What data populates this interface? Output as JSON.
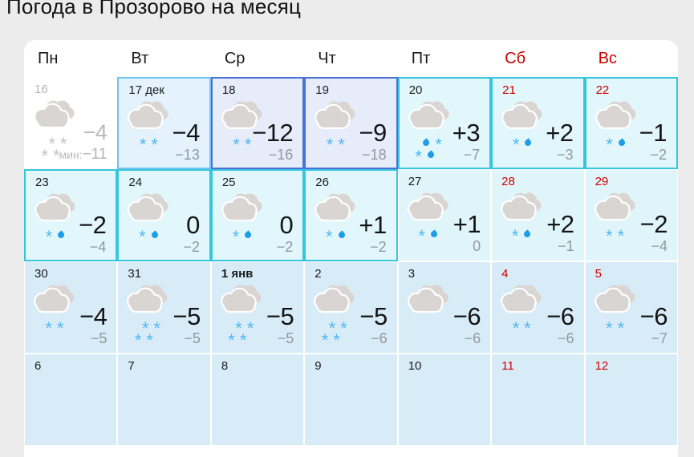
{
  "title": "Погода в Прозорово на месяц",
  "weekdays": [
    {
      "label": "Пн",
      "weekend": false
    },
    {
      "label": "Вт",
      "weekend": false
    },
    {
      "label": "Ср",
      "weekend": false
    },
    {
      "label": "Чт",
      "weekend": false
    },
    {
      "label": "Пт",
      "weekend": false
    },
    {
      "label": "Сб",
      "weekend": true
    },
    {
      "label": "Вс",
      "weekend": true
    }
  ],
  "colors": {
    "weekend_red": "#cc0000",
    "today_bg": "#e3f2fd",
    "today_border": "#6ec2f4",
    "frost_bg": "#e7ecfb",
    "frost_border": "#4a70d9",
    "mild_bg": "#e1f7fb",
    "mild_border": "#36c5dd",
    "plain_cyan_bg": "#e0f5fa",
    "plain_blue_bg": "#d8ecf8",
    "cloud": "#d9d5d2",
    "snowflake": "#54b8f0",
    "raindrop": "#1e9de8"
  },
  "weeks": [
    [
      {
        "date": "16",
        "kind": "past",
        "weekend": false,
        "temp": "−4",
        "tmin": "−11",
        "tmin_prefix": "мин:",
        "precip": "snow-4",
        "icon": "cloudy-snow"
      },
      {
        "date": "17 дек",
        "kind": "today",
        "weekend": false,
        "temp": "−4",
        "tmin": "−13",
        "precip": "snow-2",
        "icon": "cloudy-snow"
      },
      {
        "date": "18",
        "kind": "frost",
        "weekend": false,
        "temp": "−12",
        "tmin": "−16",
        "precip": "snow-2",
        "icon": "cloudy-snow"
      },
      {
        "date": "19",
        "kind": "frost",
        "weekend": false,
        "temp": "−9",
        "tmin": "−18",
        "precip": "snow-2",
        "icon": "cloudy-snow"
      },
      {
        "date": "20",
        "kind": "mild",
        "weekend": false,
        "temp": "+3",
        "tmin": "−7",
        "precip": "sleet-4",
        "icon": "cloudy-sleet"
      },
      {
        "date": "21",
        "kind": "mild",
        "weekend": true,
        "temp": "+2",
        "tmin": "−3",
        "precip": "snow-rain",
        "icon": "cloudy-sleet"
      },
      {
        "date": "22",
        "kind": "mild",
        "weekend": true,
        "temp": "−1",
        "tmin": "−2",
        "precip": "snow-rain",
        "icon": "cloudy-sleet"
      }
    ],
    [
      {
        "date": "23",
        "kind": "mild",
        "weekend": false,
        "temp": "−2",
        "tmin": "−4",
        "precip": "snow-rain",
        "icon": "cloudy-sleet"
      },
      {
        "date": "24",
        "kind": "mild",
        "weekend": false,
        "temp": "0",
        "tmin": "−2",
        "precip": "snow-rain",
        "icon": "cloudy-sleet"
      },
      {
        "date": "25",
        "kind": "mild",
        "weekend": false,
        "temp": "0",
        "tmin": "−2",
        "precip": "snow-rain",
        "icon": "cloudy-sleet"
      },
      {
        "date": "26",
        "kind": "mild",
        "weekend": false,
        "temp": "+1",
        "tmin": "−2",
        "precip": "snow-rain",
        "icon": "cloudy-sleet"
      },
      {
        "date": "27",
        "kind": "plain-cyan",
        "weekend": false,
        "temp": "+1",
        "tmin": "0",
        "precip": "snow-rain",
        "icon": "cloudy-sleet"
      },
      {
        "date": "28",
        "kind": "plain-cyan",
        "weekend": true,
        "temp": "+2",
        "tmin": "−1",
        "precip": "snow-rain",
        "icon": "cloudy-sleet"
      },
      {
        "date": "29",
        "kind": "plain-cyan",
        "weekend": true,
        "temp": "−2",
        "tmin": "−4",
        "precip": "snow-2",
        "icon": "cloudy-snow"
      }
    ],
    [
      {
        "date": "30",
        "kind": "plain-blue",
        "weekend": false,
        "temp": "−4",
        "tmin": "−5",
        "precip": "snow-2",
        "icon": "cloudy-snow"
      },
      {
        "date": "31",
        "kind": "plain-blue",
        "weekend": false,
        "temp": "−5",
        "tmin": "−5",
        "precip": "snow-4",
        "icon": "cloudy-heavy-snow"
      },
      {
        "date": "1 янв",
        "kind": "plain-blue",
        "bold": true,
        "weekend": false,
        "temp": "−5",
        "tmin": "−5",
        "precip": "snow-4",
        "icon": "cloudy-heavy-snow"
      },
      {
        "date": "2",
        "kind": "plain-blue",
        "weekend": false,
        "temp": "−5",
        "tmin": "−6",
        "precip": "snow-4",
        "icon": "cloudy-heavy-snow"
      },
      {
        "date": "3",
        "kind": "plain-blue",
        "weekend": false,
        "temp": "−6",
        "tmin": "−6",
        "precip": "none",
        "icon": "cloudy"
      },
      {
        "date": "4",
        "kind": "plain-blue",
        "weekend": true,
        "temp": "−6",
        "tmin": "−6",
        "precip": "snow-2",
        "icon": "cloudy-snow"
      },
      {
        "date": "5",
        "kind": "plain-blue",
        "weekend": true,
        "temp": "−6",
        "tmin": "−7",
        "precip": "snow-2",
        "icon": "cloudy-snow"
      }
    ],
    [
      {
        "date": "6",
        "kind": "plain-blue",
        "weekend": false,
        "temp": "",
        "tmin": "",
        "precip": "none",
        "icon": ""
      },
      {
        "date": "7",
        "kind": "plain-blue",
        "weekend": false,
        "temp": "",
        "tmin": "",
        "precip": "none",
        "icon": ""
      },
      {
        "date": "8",
        "kind": "plain-blue",
        "weekend": false,
        "temp": "",
        "tmin": "",
        "precip": "none",
        "icon": ""
      },
      {
        "date": "9",
        "kind": "plain-blue",
        "weekend": false,
        "temp": "",
        "tmin": "",
        "precip": "none",
        "icon": ""
      },
      {
        "date": "10",
        "kind": "plain-blue",
        "weekend": false,
        "temp": "",
        "tmin": "",
        "precip": "none",
        "icon": ""
      },
      {
        "date": "11",
        "kind": "plain-blue",
        "weekend": true,
        "temp": "",
        "tmin": "",
        "precip": "none",
        "icon": ""
      },
      {
        "date": "12",
        "kind": "plain-blue",
        "weekend": true,
        "temp": "",
        "tmin": "",
        "precip": "none",
        "icon": ""
      }
    ]
  ]
}
